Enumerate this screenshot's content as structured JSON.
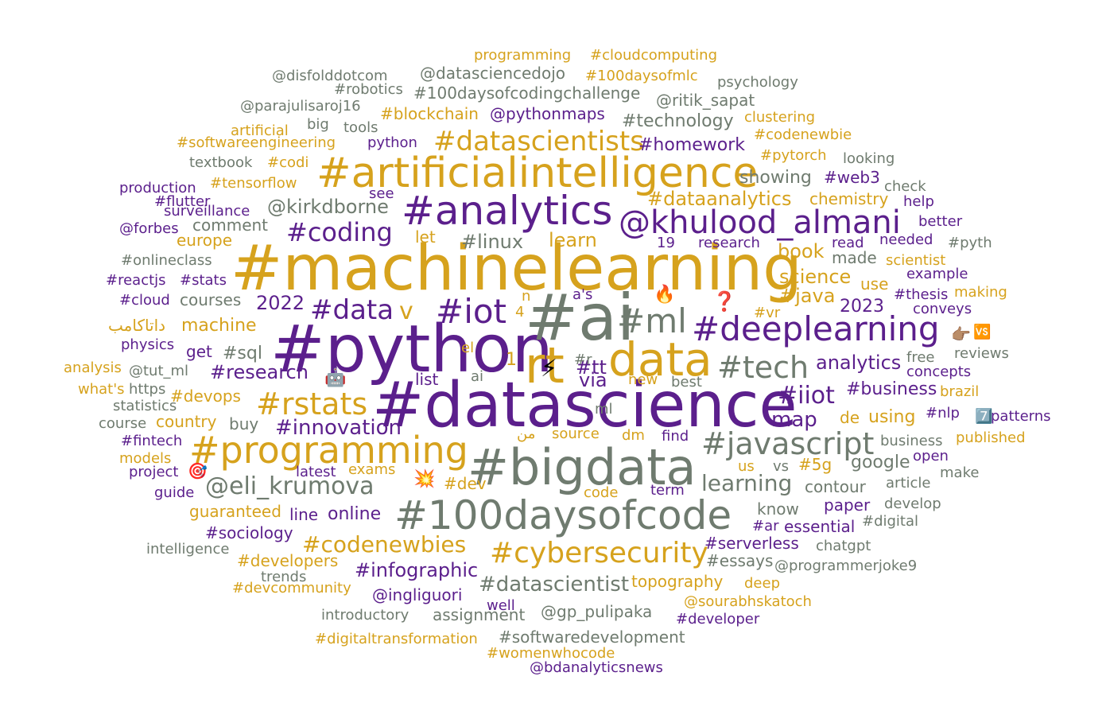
{
  "colors": {
    "purple": "#5b1f8c",
    "gold": "#d6a21d",
    "gray": "#6f7b6f"
  },
  "words": [
    {
      "t": "#machinelearning",
      "c": "G"
    },
    {
      "t": "#python",
      "c": "P"
    },
    {
      "t": "#datascience",
      "c": "P"
    },
    {
      "t": "#ai",
      "c": "R"
    },
    {
      "t": "#bigdata",
      "c": "R"
    },
    {
      "t": "#artificialintelligence",
      "c": "G"
    },
    {
      "t": "#analytics",
      "c": "P"
    },
    {
      "t": "@khulood_almani",
      "c": "P"
    },
    {
      "t": "rt",
      "c": "G"
    },
    {
      "t": "data",
      "c": "G"
    },
    {
      "t": "#100daysofcode",
      "c": "R"
    },
    {
      "t": "#deeplearning",
      "c": "P"
    },
    {
      "t": "#programming",
      "c": "G"
    },
    {
      "t": "#ml",
      "c": "R"
    },
    {
      "t": "#iot",
      "c": "P"
    },
    {
      "t": "#tech",
      "c": "R"
    },
    {
      "t": "#rstats",
      "c": "G"
    },
    {
      "t": "#javascript",
      "c": "R"
    },
    {
      "t": "#cybersecurity",
      "c": "G"
    },
    {
      "t": "@eli_krumova",
      "c": "R"
    },
    {
      "t": "#datascientists",
      "c": "G"
    },
    {
      "t": "#data",
      "c": "P"
    },
    {
      "t": "#coding",
      "c": "P"
    },
    {
      "t": "#iiot",
      "c": "P"
    },
    {
      "t": "learning",
      "c": "R"
    },
    {
      "t": "#codenewbies",
      "c": "G"
    },
    {
      "t": "map",
      "c": "P"
    },
    {
      "t": "#innovation",
      "c": "P"
    },
    {
      "t": "@kirkdborne",
      "c": "R"
    },
    {
      "t": "#linux",
      "c": "R"
    },
    {
      "t": "learn",
      "c": "G"
    },
    {
      "t": "#datascientist",
      "c": "R"
    },
    {
      "t": "#infographic",
      "c": "P"
    },
    {
      "t": "#dataanalytics",
      "c": "G"
    },
    {
      "t": "book",
      "c": "G"
    },
    {
      "t": "science",
      "c": "G"
    },
    {
      "t": "analytics",
      "c": "P"
    },
    {
      "t": "via",
      "c": "P"
    },
    {
      "t": "#tt",
      "c": "P"
    },
    {
      "t": "v",
      "c": "G"
    },
    {
      "t": "#business",
      "c": "P"
    },
    {
      "t": "#research",
      "c": "P"
    },
    {
      "t": "#homework",
      "c": "P"
    },
    {
      "t": "#technology",
      "c": "R"
    },
    {
      "t": "#blockchain",
      "c": "G"
    },
    {
      "t": "@pythonmaps",
      "c": "P"
    },
    {
      "t": "#100daysofcodingchallenge",
      "c": "R"
    },
    {
      "t": "@ritik_sapat",
      "c": "R"
    },
    {
      "t": "@datasciencedojo",
      "c": "R"
    },
    {
      "t": "@disfolddotcom",
      "c": "R"
    },
    {
      "t": "#robotics",
      "c": "R"
    },
    {
      "t": "#100daysofmlc",
      "c": "G"
    },
    {
      "t": "programming",
      "c": "G"
    },
    {
      "t": "#cloudcomputing",
      "c": "G"
    },
    {
      "t": "psychology",
      "c": "R"
    },
    {
      "t": "@parajulisaroj16",
      "c": "R"
    },
    {
      "t": "clustering",
      "c": "G"
    },
    {
      "t": "#codenewbie",
      "c": "G"
    },
    {
      "t": "artificial",
      "c": "G"
    },
    {
      "t": "big",
      "c": "R"
    },
    {
      "t": "tools",
      "c": "R"
    },
    {
      "t": "#softwareengineering",
      "c": "G"
    },
    {
      "t": "python",
      "c": "P"
    },
    {
      "t": "#pytorch",
      "c": "G"
    },
    {
      "t": "looking",
      "c": "R"
    },
    {
      "t": "textbook",
      "c": "R"
    },
    {
      "t": "#codi",
      "c": "G"
    },
    {
      "t": "showing",
      "c": "R"
    },
    {
      "t": "#web3",
      "c": "P"
    },
    {
      "t": "production",
      "c": "P"
    },
    {
      "t": "#tensorflow",
      "c": "G"
    },
    {
      "t": "see",
      "c": "P"
    },
    {
      "t": "check",
      "c": "R"
    },
    {
      "t": "#flutter",
      "c": "P"
    },
    {
      "t": "chemistry",
      "c": "G"
    },
    {
      "t": "help",
      "c": "P"
    },
    {
      "t": "surveillance",
      "c": "P"
    },
    {
      "t": "comment",
      "c": "R"
    },
    {
      "t": "better",
      "c": "P"
    },
    {
      "t": "@forbes",
      "c": "P"
    },
    {
      "t": "europe",
      "c": "G"
    },
    {
      "t": "let",
      "c": "G"
    },
    {
      "t": "19",
      "c": "P"
    },
    {
      "t": "research",
      "c": "P"
    },
    {
      "t": "read",
      "c": "P"
    },
    {
      "t": "needed",
      "c": "P"
    },
    {
      "t": "#pyth",
      "c": "R"
    },
    {
      "t": "#onlineclass",
      "c": "R"
    },
    {
      "t": "made",
      "c": "R"
    },
    {
      "t": "scientist",
      "c": "G"
    },
    {
      "t": "#reactjs",
      "c": "P"
    },
    {
      "t": "#stats",
      "c": "P"
    },
    {
      "t": "example",
      "c": "P"
    },
    {
      "t": "use",
      "c": "G"
    },
    {
      "t": "#cloud",
      "c": "P"
    },
    {
      "t": "courses",
      "c": "R"
    },
    {
      "t": "2022",
      "c": "P"
    },
    {
      "t": "n",
      "c": "G"
    },
    {
      "t": "a's",
      "c": "P"
    },
    {
      "t": "#java",
      "c": "G"
    },
    {
      "t": "#thesis",
      "c": "P"
    },
    {
      "t": "making",
      "c": "G"
    },
    {
      "t": "#vr",
      "c": "G"
    },
    {
      "t": "2023",
      "c": "P"
    },
    {
      "t": "conveys",
      "c": "P"
    },
    {
      "t": "داتاكامب",
      "c": "G"
    },
    {
      "t": "machine",
      "c": "G"
    },
    {
      "t": "4",
      "c": "G"
    },
    {
      "t": "physics",
      "c": "P"
    },
    {
      "t": "get",
      "c": "P"
    },
    {
      "t": "#sql",
      "c": "R"
    },
    {
      "t": "el",
      "c": "G"
    },
    {
      "t": "1",
      "c": "G"
    },
    {
      "t": "#r",
      "c": "R"
    },
    {
      "t": "free",
      "c": "R"
    },
    {
      "t": "reviews",
      "c": "R"
    },
    {
      "t": "analysis",
      "c": "G"
    },
    {
      "t": "@tut_ml",
      "c": "R"
    },
    {
      "t": "ai",
      "c": "R"
    },
    {
      "t": "list",
      "c": "P"
    },
    {
      "t": "new",
      "c": "G"
    },
    {
      "t": "best",
      "c": "R"
    },
    {
      "t": "concepts",
      "c": "P"
    },
    {
      "t": "what's",
      "c": "G"
    },
    {
      "t": "https",
      "c": "R"
    },
    {
      "t": "#devops",
      "c": "G"
    },
    {
      "t": "brazil",
      "c": "G"
    },
    {
      "t": "statistics",
      "c": "R"
    },
    {
      "t": "ml",
      "c": "R"
    },
    {
      "t": "#nlp",
      "c": "P"
    },
    {
      "t": "patterns",
      "c": "P"
    },
    {
      "t": "course",
      "c": "R"
    },
    {
      "t": "country",
      "c": "G"
    },
    {
      "t": "buy",
      "c": "R"
    },
    {
      "t": "de",
      "c": "G"
    },
    {
      "t": "using",
      "c": "G"
    },
    {
      "t": "#fintech",
      "c": "P"
    },
    {
      "t": "source",
      "c": "G"
    },
    {
      "t": "dm",
      "c": "G"
    },
    {
      "t": "find",
      "c": "P"
    },
    {
      "t": "business",
      "c": "R"
    },
    {
      "t": "published",
      "c": "G"
    },
    {
      "t": "من",
      "c": "G"
    },
    {
      "t": "models",
      "c": "G"
    },
    {
      "t": "open",
      "c": "P"
    },
    {
      "t": "project",
      "c": "P"
    },
    {
      "t": "exams",
      "c": "G"
    },
    {
      "t": "latest",
      "c": "P"
    },
    {
      "t": "us",
      "c": "G"
    },
    {
      "t": "vs",
      "c": "R"
    },
    {
      "t": "#5g",
      "c": "G"
    },
    {
      "t": "google",
      "c": "R"
    },
    {
      "t": "make",
      "c": "R"
    },
    {
      "t": "#dev",
      "c": "G"
    },
    {
      "t": "article",
      "c": "R"
    },
    {
      "t": "guide",
      "c": "P"
    },
    {
      "t": "code",
      "c": "G"
    },
    {
      "t": "term",
      "c": "P"
    },
    {
      "t": "contour",
      "c": "R"
    },
    {
      "t": "know",
      "c": "R"
    },
    {
      "t": "paper",
      "c": "P"
    },
    {
      "t": "develop",
      "c": "R"
    },
    {
      "t": "guaranteed",
      "c": "G"
    },
    {
      "t": "line",
      "c": "P"
    },
    {
      "t": "online",
      "c": "P"
    },
    {
      "t": "#ar",
      "c": "P"
    },
    {
      "t": "essential",
      "c": "P"
    },
    {
      "t": "#digital",
      "c": "R"
    },
    {
      "t": "#sociology",
      "c": "P"
    },
    {
      "t": "intelligence",
      "c": "R"
    },
    {
      "t": "#serverless",
      "c": "P"
    },
    {
      "t": "chatgpt",
      "c": "R"
    },
    {
      "t": "#developers",
      "c": "G"
    },
    {
      "t": "#essays",
      "c": "R"
    },
    {
      "t": "@programmerjoke9",
      "c": "R"
    },
    {
      "t": "trends",
      "c": "R"
    },
    {
      "t": "#devcommunity",
      "c": "G"
    },
    {
      "t": "@ingliguori",
      "c": "P"
    },
    {
      "t": "topography",
      "c": "G"
    },
    {
      "t": "deep",
      "c": "G"
    },
    {
      "t": "@sourabhskatoch",
      "c": "G"
    },
    {
      "t": "introductory",
      "c": "R"
    },
    {
      "t": "well",
      "c": "P"
    },
    {
      "t": "assignment",
      "c": "R"
    },
    {
      "t": "@gp_pulipaka",
      "c": "R"
    },
    {
      "t": "#developer",
      "c": "P"
    },
    {
      "t": "#digitaltransformation",
      "c": "G"
    },
    {
      "t": "#softwaredevelopment",
      "c": "R"
    },
    {
      "t": "#womenwhocode",
      "c": "G"
    },
    {
      "t": "@bdanalyticsnews",
      "c": "P"
    }
  ],
  "emojis": [
    {
      "t": "🔥",
      "n": "fire-emoji"
    },
    {
      "t": "❓",
      "n": "question-mark-emoji"
    },
    {
      "t": "⚡",
      "n": "lightning-emoji"
    },
    {
      "t": "👉🏽",
      "n": "pointing-hand-emoji"
    },
    {
      "t": "🆚",
      "n": "vs-button-emoji"
    },
    {
      "t": "🤖",
      "n": "robot-emoji"
    },
    {
      "t": "🎯",
      "n": "target-emoji"
    },
    {
      "t": "💥",
      "n": "collision-emoji"
    },
    {
      "t": "7️⃣",
      "n": "keycap-seven-emoji"
    }
  ]
}
